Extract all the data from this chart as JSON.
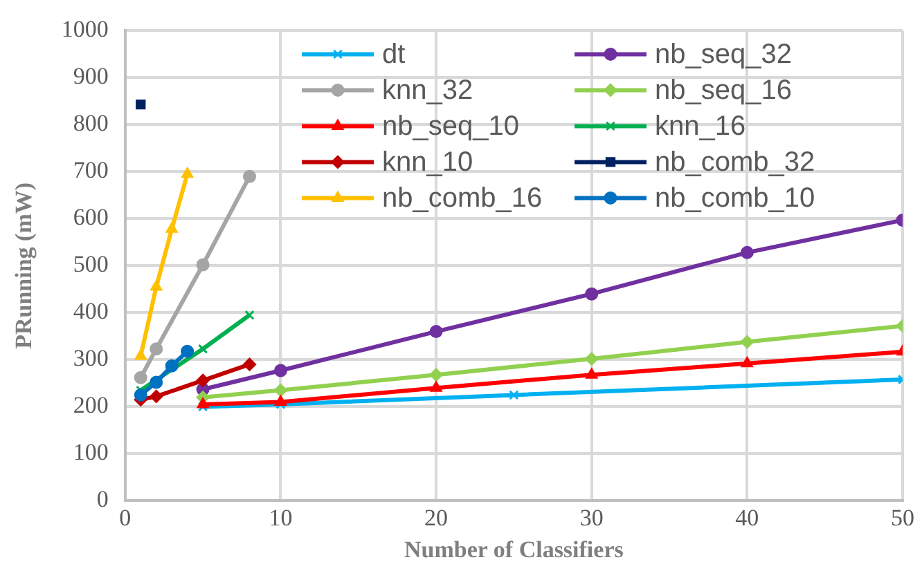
{
  "chart_data": {
    "type": "line",
    "xlabel": "Number of Classifiers",
    "ylabel": "PRunning (mW)",
    "xlim": [
      0,
      50
    ],
    "xticks": [
      0,
      10,
      20,
      30,
      40,
      50
    ],
    "ylim": [
      0,
      1000
    ],
    "yticks": [
      0,
      100,
      200,
      300,
      400,
      500,
      600,
      700,
      800,
      900,
      1000
    ],
    "grid": true,
    "legend": "top right",
    "series": [
      {
        "name": "dt",
        "color": "#00b0f0",
        "marker": "cross",
        "x": [
          5,
          10,
          25,
          50
        ],
        "values": [
          200,
          205,
          225,
          258
        ]
      },
      {
        "name": "nb_seq_32",
        "color": "#7030a0",
        "marker": "circle",
        "x": [
          5,
          10,
          20,
          30,
          40,
          50
        ],
        "values": [
          237,
          277,
          360,
          440,
          528,
          597
        ]
      },
      {
        "name": "knn_32",
        "color": "#a5a5a5",
        "marker": "circle",
        "x": [
          1,
          2,
          5,
          8
        ],
        "values": [
          262,
          323,
          502,
          690
        ]
      },
      {
        "name": "nb_seq_16",
        "color": "#92d050",
        "marker": "diamond",
        "x": [
          5,
          10,
          20,
          30,
          40,
          50
        ],
        "values": [
          220,
          235,
          268,
          302,
          338,
          372
        ]
      },
      {
        "name": "nb_seq_10",
        "color": "#ff0000",
        "marker": "triangle",
        "x": [
          5,
          10,
          20,
          30,
          40,
          50
        ],
        "values": [
          205,
          210,
          240,
          268,
          292,
          317
        ]
      },
      {
        "name": "knn_16",
        "color": "#00b050",
        "marker": "cross",
        "x": [
          1,
          5,
          8
        ],
        "values": [
          235,
          323,
          395
        ]
      },
      {
        "name": "knn_10",
        "color": "#c00000",
        "marker": "diamond",
        "x": [
          1,
          2,
          5,
          8
        ],
        "values": [
          215,
          222,
          256,
          290
        ]
      },
      {
        "name": "nb_comb_32",
        "color": "#002060",
        "marker": "square",
        "x": [
          1
        ],
        "values": [
          843
        ]
      },
      {
        "name": "nb_comb_16",
        "color": "#ffc000",
        "marker": "triangle",
        "x": [
          1,
          2,
          3,
          4
        ],
        "values": [
          308,
          455,
          578,
          695
        ]
      },
      {
        "name": "nb_comb_10",
        "color": "#0070c0",
        "marker": "circle",
        "x": [
          1,
          2,
          3,
          4
        ],
        "values": [
          225,
          252,
          287,
          318
        ]
      }
    ]
  }
}
